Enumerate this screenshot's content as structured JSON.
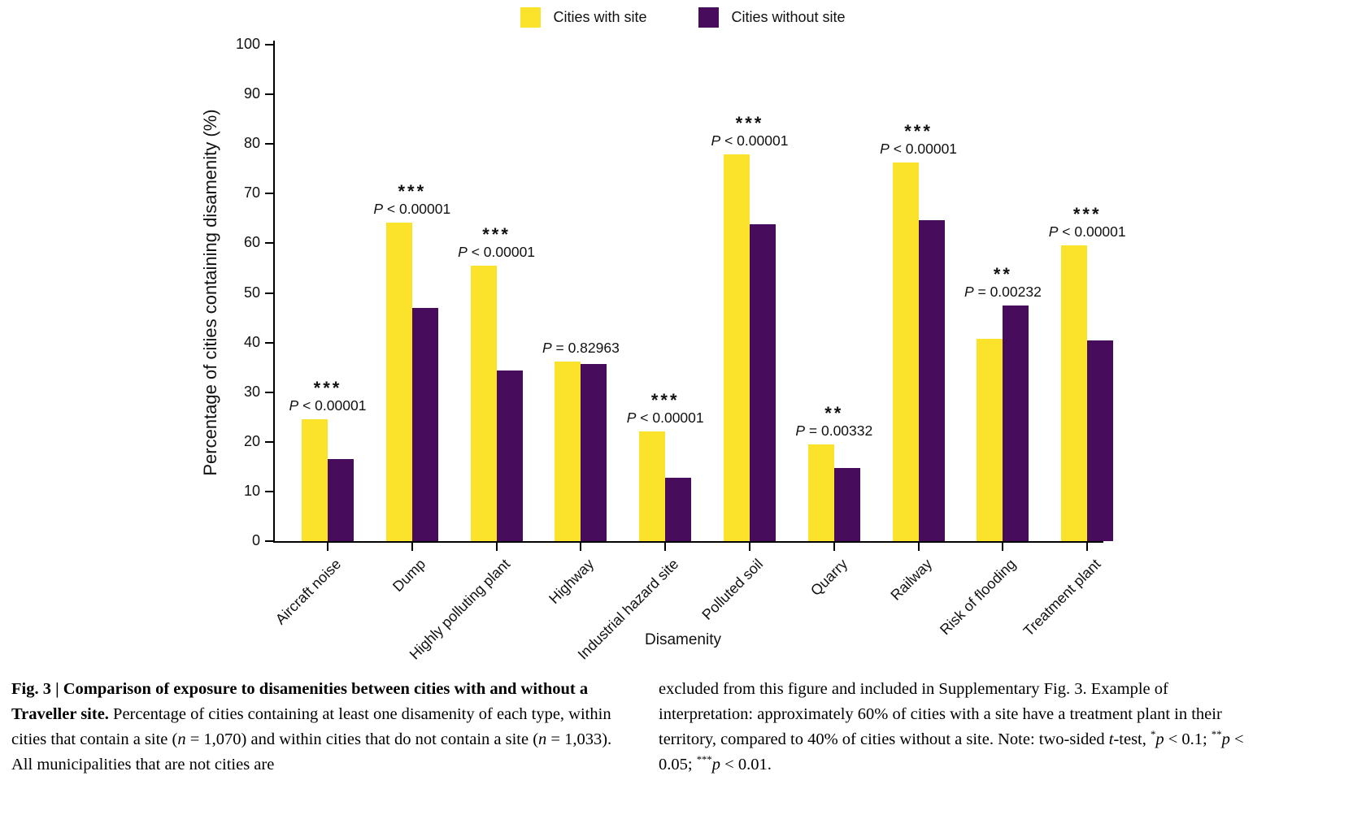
{
  "chart_data": {
    "type": "bar",
    "title": "",
    "xlabel": "Disamenity",
    "ylabel": "Percentage of cities containing disamenity (%)",
    "ylim": [
      0,
      100
    ],
    "ytick_step": 10,
    "grid": false,
    "legend_position": "top-center",
    "categories": [
      "Aircraft noise",
      "Dump",
      "Highly polluting plant",
      "Highway",
      "Industrial hazard site",
      "Polluted soil",
      "Quarry",
      "Railway",
      "Risk of flooding",
      "Treatment plant"
    ],
    "series": [
      {
        "name": "Cities with site",
        "color": "#FCE32B",
        "values": [
          24.5,
          64.2,
          55.5,
          36.1,
          22.1,
          77.9,
          19.4,
          76.3,
          40.7,
          59.6
        ]
      },
      {
        "name": "Cities without site",
        "color": "#470C5C",
        "values": [
          16.6,
          47.0,
          34.3,
          35.6,
          12.7,
          63.8,
          14.7,
          64.7,
          47.4,
          40.4
        ]
      }
    ],
    "annotations": [
      {
        "category": "Aircraft noise",
        "stars": "***",
        "p_label": "P < 0.00001"
      },
      {
        "category": "Dump",
        "stars": "***",
        "p_label": "P < 0.00001"
      },
      {
        "category": "Highly polluting plant",
        "stars": "***",
        "p_label": "P < 0.00001"
      },
      {
        "category": "Highway",
        "stars": "",
        "p_label": "P = 0.82963"
      },
      {
        "category": "Industrial hazard site",
        "stars": "***",
        "p_label": "P < 0.00001"
      },
      {
        "category": "Polluted soil",
        "stars": "***",
        "p_label": "P < 0.00001"
      },
      {
        "category": "Quarry",
        "stars": "**",
        "p_label": "P = 0.00332"
      },
      {
        "category": "Railway",
        "stars": "***",
        "p_label": "P < 0.00001"
      },
      {
        "category": "Risk of flooding",
        "stars": "**",
        "p_label": "P = 0.00232"
      },
      {
        "category": "Treatment plant",
        "stars": "***",
        "p_label": "P < 0.00001"
      }
    ]
  },
  "caption": {
    "left_runs": [
      {
        "text": "Fig. 3 | Comparison of exposure to disamenities between cities with and without a Traveller site.",
        "bold": true
      },
      {
        "text": " Percentage of cities containing at least one disamenity of each type, within cities that contain a site ("
      },
      {
        "text": "n",
        "italic": true
      },
      {
        "text": " = 1,070) and within cities that do not contain a site ("
      },
      {
        "text": "n",
        "italic": true
      },
      {
        "text": " = 1,033). All municipalities that are not cities are"
      }
    ],
    "right_runs": [
      {
        "text": "excluded from this figure and included in Supplementary Fig. 3. Example of interpretation: approximately 60% of cities with a site have a treatment plant in their territory, compared to 40% of cities without a site. Note: two-sided "
      },
      {
        "text": "t",
        "italic": true
      },
      {
        "text": "-test, "
      },
      {
        "text": "*",
        "sup": true
      },
      {
        "text": "p",
        "italic": true
      },
      {
        "text": " < 0.1; "
      },
      {
        "text": "**",
        "sup": true
      },
      {
        "text": "p",
        "italic": true
      },
      {
        "text": " < 0.05; "
      },
      {
        "text": "***",
        "sup": true
      },
      {
        "text": "p",
        "italic": true
      },
      {
        "text": " < 0.01."
      }
    ]
  }
}
